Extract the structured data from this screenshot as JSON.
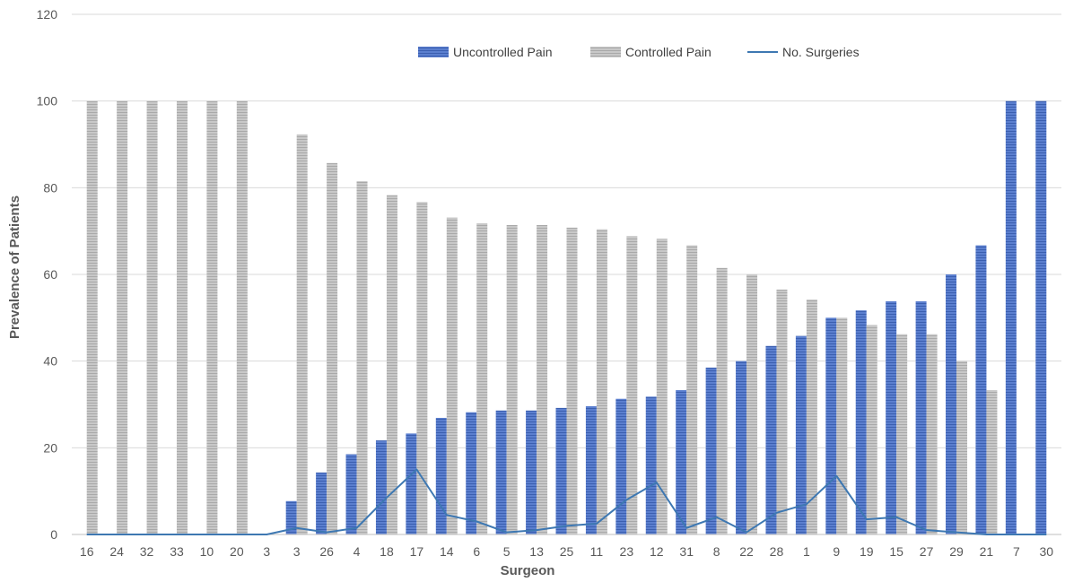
{
  "chart_data": {
    "type": "bar",
    "xlabel": "Surgeon",
    "ylabel": "Prevalence of Patients",
    "ylim": [
      0,
      120
    ],
    "yticks": [
      0,
      20,
      40,
      60,
      80,
      100,
      120
    ],
    "grid": true,
    "legend_position": "top",
    "categories": [
      "16",
      "24",
      "32",
      "33",
      "10",
      "20",
      "3",
      "3",
      "26",
      "4",
      "18",
      "17",
      "14",
      "6",
      "5",
      "13",
      "25",
      "11",
      "23",
      "12",
      "31",
      "8",
      "22",
      "28",
      "1",
      "9",
      "19",
      "15",
      "27",
      "29",
      "21",
      "7",
      "30"
    ],
    "series": [
      {
        "name": "Uncontrolled Pain",
        "type": "bar",
        "color": "#4a6fc2",
        "values": [
          0,
          0,
          0,
          0,
          0,
          0,
          0,
          7.7,
          14.3,
          18.5,
          21.7,
          23.3,
          26.9,
          28.2,
          28.6,
          28.6,
          29.2,
          29.6,
          31.3,
          31.8,
          33.3,
          38.5,
          40,
          43.5,
          45.8,
          50,
          51.7,
          53.8,
          53.8,
          60,
          66.7,
          100,
          100
        ]
      },
      {
        "name": "Controlled Pain",
        "type": "bar",
        "color": "#bfbfbf",
        "values": [
          100,
          100,
          100,
          100,
          100,
          100,
          0,
          92.3,
          85.7,
          81.5,
          78.3,
          76.7,
          73.1,
          71.8,
          71.4,
          71.4,
          70.8,
          70.4,
          68.8,
          68.2,
          66.7,
          61.5,
          60,
          56.5,
          54.2,
          50,
          48.3,
          46.2,
          46.2,
          40,
          33.3,
          0,
          0
        ]
      },
      {
        "name": "No. Surgeries",
        "type": "line",
        "color": "#3e78b2",
        "values": [
          0,
          0,
          0,
          0,
          0,
          0,
          0,
          1.5,
          0.5,
          1.5,
          8.5,
          15,
          4.5,
          3,
          0.5,
          1,
          2,
          2.5,
          8,
          12,
          1.5,
          4,
          0.5,
          5,
          7,
          13.5,
          3.5,
          4,
          1,
          0.5,
          0,
          0,
          0
        ]
      }
    ]
  }
}
